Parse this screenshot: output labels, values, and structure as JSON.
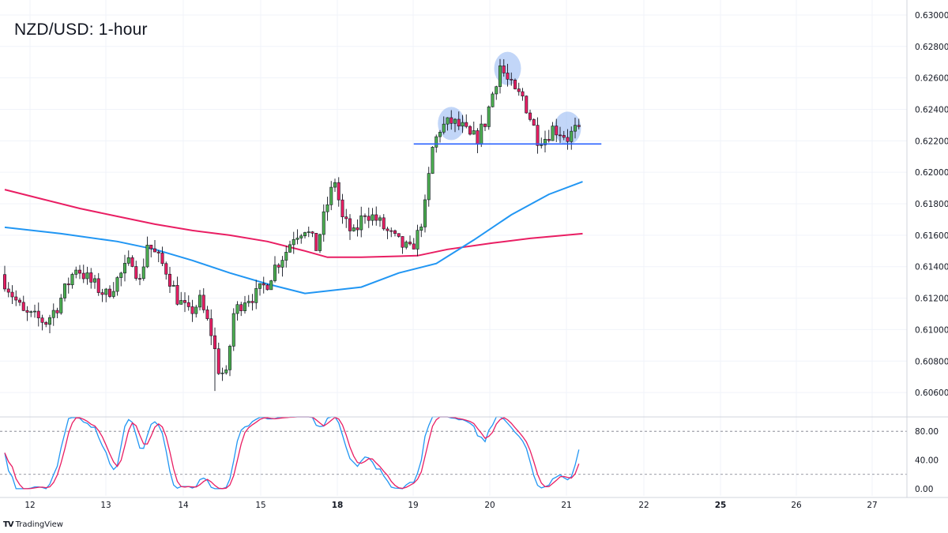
{
  "chart_data": [
    {
      "type": "candlestick",
      "title": "NZD/USD: 1-hour",
      "y_ticks": [
        "0.63000",
        "0.62800",
        "0.62600",
        "0.62400",
        "0.62200",
        "0.62000",
        "0.61800",
        "0.61600",
        "0.61400",
        "0.61200",
        "0.61000",
        "0.60800",
        "0.60600"
      ],
      "ylim": [
        0.6045,
        0.6307
      ],
      "x_ticks": [
        "12",
        "13",
        "14",
        "15",
        "18",
        "19",
        "20",
        "21",
        "22",
        "25",
        "26",
        "27"
      ],
      "x_ticks_bold": [
        "18",
        "25"
      ],
      "series": [
        {
          "role": "candles",
          "up_color": "#4caf50",
          "down_color": "#e91e63",
          "count": 154,
          "open": 0.6135,
          "close": 0.6229,
          "high": 0.6272,
          "low": 0.6061
        },
        {
          "role": "moving-average-1",
          "color": "#e91e63",
          "points": [
            [
              0,
              0.6189
            ],
            [
              10,
              0.6183
            ],
            [
              20,
              0.6177
            ],
            [
              30,
              0.6172
            ],
            [
              40,
              0.6167
            ],
            [
              50,
              0.6163
            ],
            [
              60,
              0.616
            ],
            [
              70,
              0.6156
            ],
            [
              80,
              0.615
            ],
            [
              86,
              0.6146
            ],
            [
              95,
              0.6146
            ],
            [
              110,
              0.6147
            ],
            [
              118,
              0.6151
            ],
            [
              130,
              0.6155
            ],
            [
              140,
              0.6158
            ],
            [
              154,
              0.6161
            ]
          ]
        },
        {
          "role": "moving-average-2",
          "color": "#2196f3",
          "points": [
            [
              0,
              0.6165
            ],
            [
              15,
              0.6161
            ],
            [
              30,
              0.6156
            ],
            [
              40,
              0.6151
            ],
            [
              50,
              0.6144
            ],
            [
              60,
              0.6136
            ],
            [
              70,
              0.6129
            ],
            [
              80,
              0.6123
            ],
            [
              95,
              0.6127
            ],
            [
              105,
              0.6136
            ],
            [
              115,
              0.6142
            ],
            [
              125,
              0.6157
            ],
            [
              135,
              0.6173
            ],
            [
              145,
              0.6186
            ],
            [
              154,
              0.6194
            ]
          ]
        }
      ],
      "annotations": [
        {
          "kind": "neckline",
          "value": 0.6218,
          "color": "#2962ff",
          "from_index": 109,
          "to_index": 159
        },
        {
          "kind": "shoulder-highlight",
          "index": 119,
          "value": 0.6231,
          "color": "#90b4f3"
        },
        {
          "kind": "head-highlight",
          "index": 134,
          "value": 0.6266,
          "color": "#90b4f3"
        },
        {
          "kind": "shoulder-highlight",
          "index": 150,
          "value": 0.6228,
          "color": "#90b4f3"
        }
      ]
    },
    {
      "type": "line",
      "indicator": "oscillator",
      "y_ticks": [
        "80.00",
        "40.00",
        "0.00"
      ],
      "ylim": [
        -10,
        100
      ],
      "levels": [
        80,
        20
      ],
      "series": [
        {
          "role": "fast-line",
          "color": "#2196f3"
        },
        {
          "role": "slow-line",
          "color": "#e91e63"
        }
      ]
    }
  ],
  "brand": {
    "name": "TradingView",
    "logo_text": "TV"
  },
  "colors": {
    "grid": "#f0f3fa",
    "axis_border": "#d1d4dc",
    "tick_text": "#131722",
    "highlight": "#90b4f3"
  }
}
